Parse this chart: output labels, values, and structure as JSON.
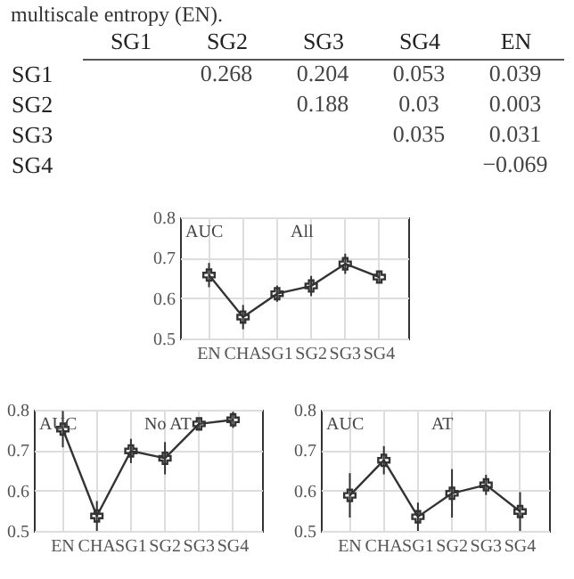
{
  "chart_data": [
    {
      "type": "other",
      "annotations": [
        "multiscale entropy (EN)."
      ],
      "categories": [
        "SG1",
        "SG2",
        "SG3",
        "SG4",
        "EN"
      ],
      "y_categories": [
        "SG1",
        "SG2",
        "SG3",
        "SG4"
      ],
      "cell_labels": [
        [
          null,
          "0.268",
          "0.204",
          "0.053",
          "0.039"
        ],
        [
          null,
          null,
          "0.188",
          "0.03",
          "0.003"
        ],
        [
          null,
          null,
          null,
          "0.035",
          "0.031"
        ],
        [
          null,
          null,
          null,
          null,
          "−0.069"
        ]
      ]
    },
    {
      "type": "line",
      "annotations": [
        "AUC",
        "All"
      ],
      "categories": [
        "EN",
        "CHA",
        "SG1",
        "SG2",
        "SG3",
        "SG4"
      ],
      "ylim": [
        0.5,
        0.8
      ],
      "yticks": [
        0.5,
        0.6,
        0.7,
        0.8
      ],
      "grid": true,
      "marker": "cross",
      "series": [
        {
          "color": "#333333",
          "values": [
            0.657,
            0.553,
            0.611,
            0.63,
            0.685,
            0.652
          ],
          "errors": [
            0.03,
            0.03,
            0.02,
            0.025,
            0.025,
            0.015
          ]
        }
      ]
    },
    {
      "type": "line",
      "annotations": [
        "AUC",
        "No AT"
      ],
      "categories": [
        "EN",
        "CHA",
        "SG1",
        "SG2",
        "SG3",
        "SG4"
      ],
      "ylim": [
        0.5,
        0.8
      ],
      "yticks": [
        0.5,
        0.6,
        0.7,
        0.8
      ],
      "grid": true,
      "marker": "cross",
      "series": [
        {
          "color": "#333333",
          "values": [
            0.752,
            0.537,
            0.698,
            0.68,
            0.765,
            0.775
          ],
          "errors": [
            0.045,
            0.037,
            0.03,
            0.04,
            0.015,
            0.02
          ]
        }
      ]
    },
    {
      "type": "line",
      "annotations": [
        "AUC",
        "AT"
      ],
      "categories": [
        "EN",
        "CHA",
        "SG1",
        "SG2",
        "SG3",
        "SG4"
      ],
      "ylim": [
        0.5,
        0.8
      ],
      "yticks": [
        0.5,
        0.6,
        0.7,
        0.8
      ],
      "grid": true,
      "marker": "cross",
      "series": [
        {
          "color": "#333333",
          "values": [
            0.588,
            0.675,
            0.535,
            0.593,
            0.614,
            0.548
          ],
          "errors": [
            0.055,
            0.035,
            0.035,
            0.06,
            0.025,
            0.048
          ]
        }
      ]
    }
  ]
}
